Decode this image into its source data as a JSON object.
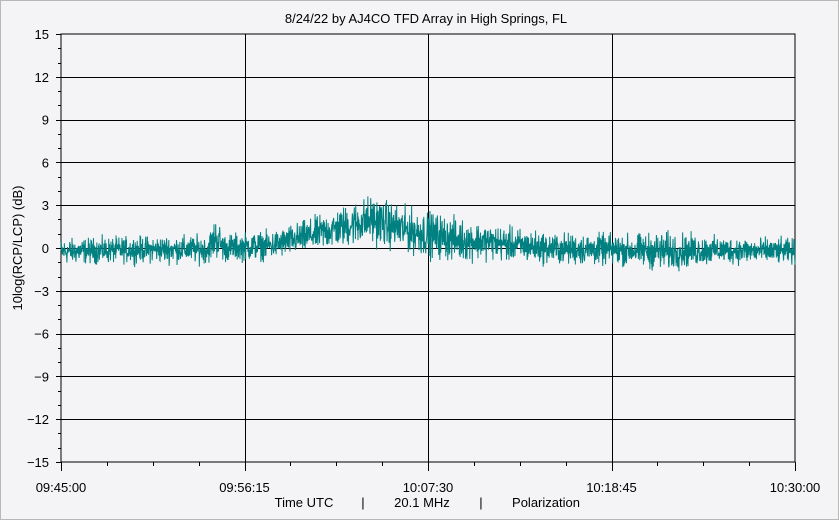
{
  "chart_data": {
    "type": "line",
    "title": "8/24/22  by  AJ4CO TFD Array  in  High Springs, FL",
    "ylabel": "10log(RCP/LCP) (dB)",
    "xlabel_parts": [
      "Time UTC",
      "|",
      "20.1 MHz",
      "|",
      "Polarization"
    ],
    "xlim": [
      "09:45:00",
      "10:30:00"
    ],
    "ylim": [
      -15,
      15
    ],
    "y_ticks": [
      15,
      12,
      9,
      6,
      3,
      0,
      -3,
      -6,
      -9,
      -12,
      -15
    ],
    "x_ticks": [
      "09:45:00",
      "09:56:15",
      "10:07:30",
      "10:18:45",
      "10:30:00"
    ],
    "grid": true,
    "series_color": "#008080",
    "envelope": {
      "t_minutes": [
        0,
        5,
        9,
        9.5,
        10,
        13,
        15,
        17,
        19,
        21,
        23,
        24.5,
        26,
        30,
        35,
        37,
        40,
        45
      ],
      "upper_db": [
        1.0,
        1.2,
        1.3,
        2.8,
        1.4,
        1.6,
        2.4,
        3.3,
        4.4,
        3.5,
        3.1,
        2.6,
        2.2,
        1.5,
        1.4,
        1.7,
        1.2,
        1.0
      ],
      "lower_db": [
        -1.5,
        -1.4,
        -1.5,
        -1.3,
        -1.4,
        -1.2,
        -0.8,
        -0.5,
        -0.4,
        -0.9,
        -1.4,
        -1.5,
        -1.3,
        -1.6,
        -1.7,
        -2.2,
        -1.5,
        -1.5
      ]
    }
  }
}
